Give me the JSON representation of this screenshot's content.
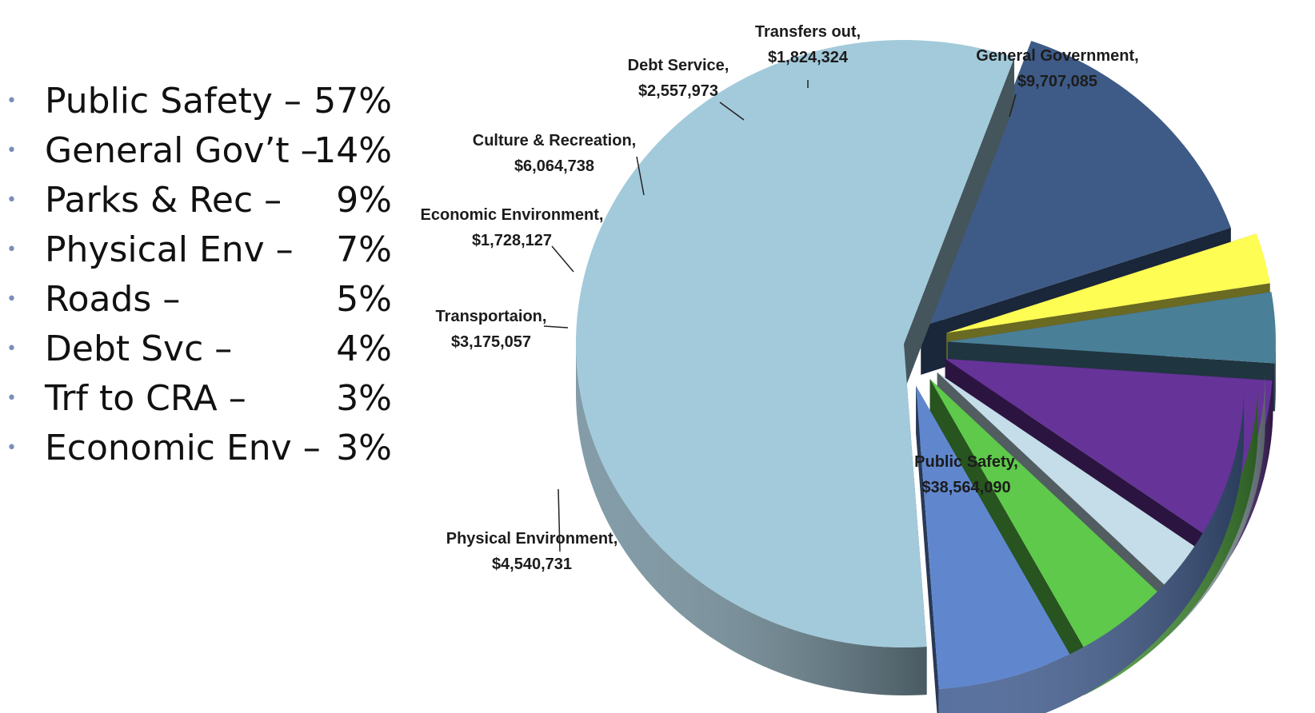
{
  "bullets": [
    {
      "label": "Public Safety –",
      "pct": "57%"
    },
    {
      "label": "General Gov’t –",
      "pct": "14%"
    },
    {
      "label": "Parks & Rec –",
      "pct": "9%"
    },
    {
      "label": "Physical Env –",
      "pct": "7%"
    },
    {
      "label": "Roads –",
      "pct": "5%"
    },
    {
      "label": "Debt Svc –",
      "pct": "4%"
    },
    {
      "label": "Trf to CRA –",
      "pct": "3%"
    },
    {
      "label": "Economic Env –",
      "pct": "3%"
    }
  ],
  "chart_data": {
    "type": "pie",
    "style": "3D exploded",
    "slices": [
      {
        "name": "Public Safety,",
        "value": 38564090,
        "label": "$38,564,090",
        "color": "#a2cadb"
      },
      {
        "name": "General Government,",
        "value": 9707085,
        "label": "$9,707,085",
        "color": "#3e5b87"
      },
      {
        "name": "Transfers out,",
        "value": 1824324,
        "label": "$1,824,324",
        "color": "#fdfd54"
      },
      {
        "name": "Debt Service,",
        "value": 2557973,
        "label": "$2,557,973",
        "color": "#4a7f98"
      },
      {
        "name": "Culture & Recreation,",
        "value": 6064738,
        "label": "$6,064,738",
        "color": "#663399"
      },
      {
        "name": "Economic Environment,",
        "value": 1728127,
        "label": "$1,728,127",
        "color": "#c4dde8"
      },
      {
        "name": "Transportaion,",
        "value": 3175057,
        "label": "$3,175,057",
        "color": "#5ec94a"
      },
      {
        "name": "Physical Environment,",
        "value": 4540731,
        "label": "$4,540,731",
        "color": "#6087ce"
      }
    ]
  }
}
